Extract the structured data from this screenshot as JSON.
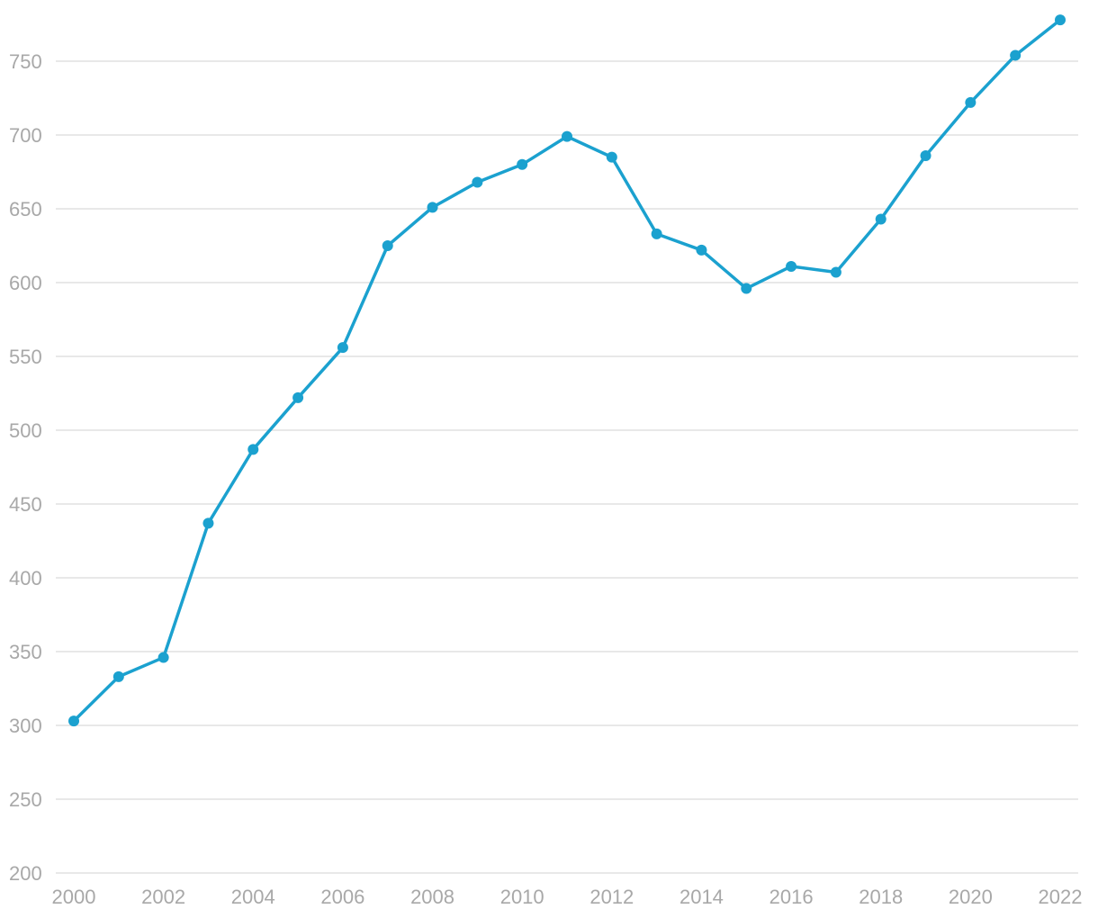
{
  "chart_data": {
    "type": "line",
    "title": "",
    "xlabel": "",
    "ylabel": "",
    "x": [
      2000,
      2001,
      2002,
      2003,
      2004,
      2005,
      2006,
      2007,
      2008,
      2009,
      2010,
      2011,
      2012,
      2013,
      2014,
      2015,
      2016,
      2017,
      2018,
      2019,
      2020,
      2021,
      2022
    ],
    "series": [
      {
        "values": [
          303,
          333,
          346,
          437,
          487,
          522,
          556,
          625,
          651,
          668,
          680,
          699,
          685,
          633,
          622,
          596,
          611,
          607,
          643,
          686,
          722,
          754,
          778
        ],
        "color": "#1ba1cf"
      }
    ],
    "xlim": [
      2000,
      2022
    ],
    "ylim": [
      200,
      780
    ],
    "x_ticks": [
      "2000",
      "2002",
      "2004",
      "2006",
      "2008",
      "2010",
      "2012",
      "2014",
      "2016",
      "2018",
      "2020",
      "2022"
    ],
    "y_ticks": [
      "200",
      "250",
      "300",
      "350",
      "400",
      "450",
      "500",
      "550",
      "600",
      "650",
      "700",
      "750"
    ],
    "grid": true,
    "legend": "none",
    "colors": {
      "line": "#1ba1cf",
      "grid": "#e0e0e0",
      "tick_text": "#a8a8a8"
    }
  }
}
